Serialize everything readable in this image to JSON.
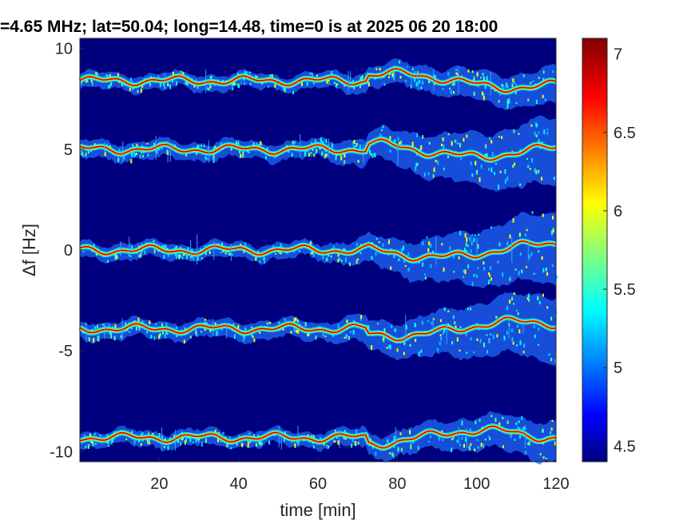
{
  "chart_data": {
    "type": "heatmap",
    "title": "=4.65 MHz;  lat=50.04; long=14.48, time=0 is at 2025 06 20 18:00",
    "xlabel": "time [min]",
    "ylabel": "Δf [Hz]",
    "xlim": [
      0,
      120
    ],
    "ylim": [
      -10.5,
      10.5
    ],
    "xticks": [
      20,
      40,
      60,
      80,
      100,
      120
    ],
    "xtick_labels": [
      "20",
      "40",
      "60",
      "80",
      "100",
      "120"
    ],
    "yticks": [
      10,
      5,
      0,
      -5,
      -10
    ],
    "ytick_labels": [
      "10",
      "5",
      "0",
      "-5",
      "-10"
    ],
    "colorbar": {
      "colormap": "jet",
      "range": [
        4.4,
        7.1
      ],
      "ticks": [
        7,
        6.5,
        6,
        5.5,
        5,
        4.5
      ],
      "tick_labels": [
        "7",
        "6.5",
        "6",
        "5.5",
        "5",
        "4.5"
      ]
    },
    "background_color": "#00007f",
    "lines": [
      {
        "df_hz": 8.4,
        "spread_start": 0.25,
        "spread_end": 0.7
      },
      {
        "df_hz": 5.0,
        "spread_start": 0.3,
        "spread_end": 1.4
      },
      {
        "df_hz": 0.0,
        "spread_start": 0.25,
        "spread_end": 1.5
      },
      {
        "df_hz": -3.9,
        "spread_start": 0.3,
        "spread_end": 1.4
      },
      {
        "df_hz": -9.3,
        "spread_start": 0.25,
        "spread_end": 0.8
      }
    ],
    "grid": false,
    "legend": "none"
  }
}
